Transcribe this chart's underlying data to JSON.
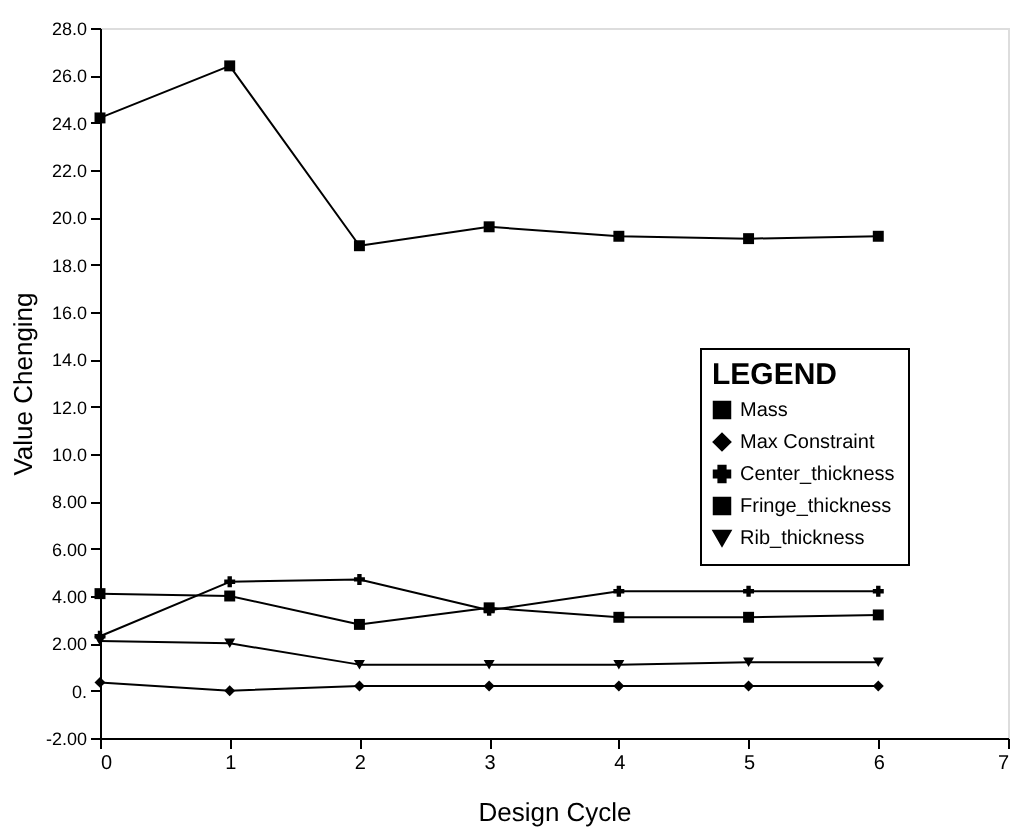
{
  "chart_data": {
    "type": "line",
    "xlabel": "Design Cycle",
    "ylabel": "Value Chenging",
    "legend_title": "LEGEND",
    "x": [
      0,
      1,
      2,
      3,
      4,
      5,
      6
    ],
    "series": [
      {
        "name": "Mass",
        "color": "#000000",
        "marker": "square",
        "values": [
          24.2,
          26.4,
          18.8,
          19.6,
          19.2,
          19.1,
          19.2
        ]
      },
      {
        "name": "Max Constraint",
        "color": "#000000",
        "marker": "diamond",
        "values": [
          0.35,
          0.0,
          0.2,
          0.2,
          0.2,
          0.2,
          0.2
        ]
      },
      {
        "name": "Center_thickness",
        "color": "#000000",
        "marker": "cross",
        "values": [
          2.3,
          4.6,
          4.7,
          3.4,
          4.2,
          4.2,
          4.2
        ]
      },
      {
        "name": "Fringe_thickness",
        "color": "#000000",
        "marker": "square",
        "values": [
          4.1,
          4.0,
          2.8,
          3.5,
          3.1,
          3.1,
          3.2
        ]
      },
      {
        "name": "Rib_thickness",
        "color": "#000000",
        "marker": "triangle",
        "values": [
          2.1,
          2.0,
          1.1,
          1.1,
          1.1,
          1.2,
          1.2
        ]
      }
    ],
    "xlim": [
      0,
      7
    ],
    "xticks": [
      0,
      1,
      2,
      3,
      4,
      5,
      6,
      7
    ],
    "ylim": [
      -2,
      28
    ],
    "yticks": [
      {
        "value": -2,
        "label": "-2.00"
      },
      {
        "value": 0,
        "label": "0."
      },
      {
        "value": 2,
        "label": "2.00"
      },
      {
        "value": 4,
        "label": "4.00"
      },
      {
        "value": 6,
        "label": "6.00"
      },
      {
        "value": 8,
        "label": "8.00"
      },
      {
        "value": 10,
        "label": "10.0"
      },
      {
        "value": 12,
        "label": "12.0"
      },
      {
        "value": 14,
        "label": "14.0"
      },
      {
        "value": 16,
        "label": "16.0"
      },
      {
        "value": 18,
        "label": "18.0"
      },
      {
        "value": 20,
        "label": "20.0"
      },
      {
        "value": 22,
        "label": "22.0"
      },
      {
        "value": 24,
        "label": "24.0"
      },
      {
        "value": 26,
        "label": "26.0"
      },
      {
        "value": 28,
        "label": "28.0"
      }
    ],
    "grid": false,
    "legend": "right",
    "line_style": "solid"
  }
}
